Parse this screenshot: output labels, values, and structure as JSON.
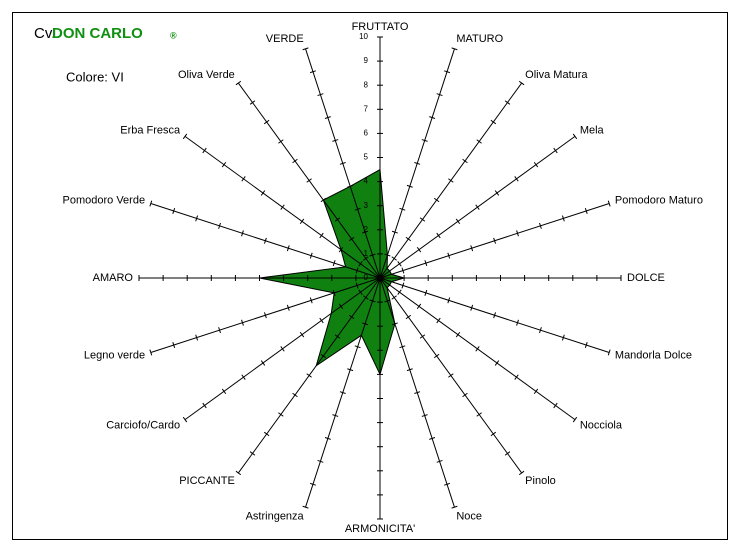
{
  "chart_data": {
    "type": "radar",
    "title_prefix": "Cv.",
    "title": "DON CARLO",
    "title_mark": "®",
    "subtitle": "Colore: VI",
    "categories": [
      "FRUTTATO",
      "MATURO",
      "Oliva Matura",
      "Mela",
      "Pomodoro Maturo",
      "DOLCE",
      "Mandorla Dolce",
      "Nocciola",
      "Pinolo",
      "Noce",
      "ARMONICITA'",
      "Astringenza",
      "PICCANTE",
      "Carciofo/Cardo",
      "Legno verde",
      "AMARO",
      "Pomodoro Verde",
      "Erba Fresca",
      "Oliva Verde",
      "VERDE"
    ],
    "values": [
      4.5,
      1,
      0.5,
      0.5,
      0.5,
      1,
      0.5,
      0.5,
      0.5,
      2,
      4,
      2.5,
      4.5,
      2.5,
      2,
      5,
      1.5,
      2,
      4,
      4
    ],
    "color": "#108010",
    "rlim": [
      0,
      10
    ],
    "rticks": [
      0,
      1,
      2,
      3,
      4,
      5,
      6,
      7,
      8,
      9,
      10
    ]
  }
}
